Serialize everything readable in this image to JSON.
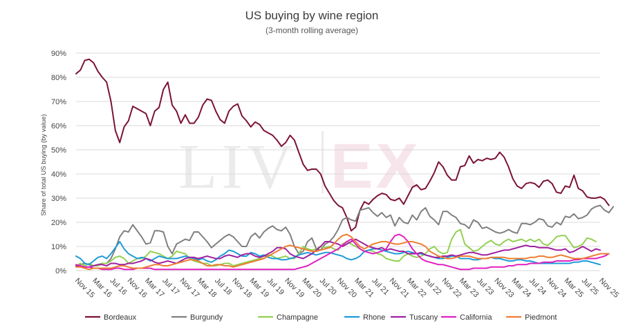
{
  "chart_data": {
    "type": "line",
    "title": "US buying by wine region",
    "subtitle": "(3-month rolling average)",
    "ylabel": "Share of total US buying (by value)",
    "xlabel": "",
    "ylim": [
      0,
      90
    ],
    "yticks": [
      0,
      10,
      20,
      30,
      40,
      50,
      60,
      70,
      80,
      90
    ],
    "ytick_labels": [
      "0%",
      "10%",
      "20%",
      "30%",
      "40%",
      "50%",
      "60%",
      "70%",
      "80%",
      "90%"
    ],
    "x_start": "Nov 15",
    "x_end": "Nov 25",
    "n_points": 121,
    "xtick_labels": [
      "Nov 15",
      "Mar 16",
      "Jul 16",
      "Nov 16",
      "Mar 17",
      "Jul 17",
      "Nov 17",
      "Mar 18",
      "Jul 18",
      "Nov 18",
      "Mar 19",
      "Jul 19",
      "Nov 19",
      "Mar 20",
      "Jul 20",
      "Nov 20",
      "Mar 21",
      "Jul 21",
      "Nov 21",
      "Mar 22",
      "Jul 22",
      "Nov 22",
      "Mar 23",
      "Jul 23",
      "Nov 23",
      "Mar 24",
      "Jul 24",
      "Nov 24",
      "Mar 25",
      "Jul 25",
      "Nov 25"
    ],
    "grid": true,
    "legend_position": "bottom",
    "watermark": "LIV-EX",
    "series": [
      {
        "name": "Bordeaux",
        "color": "#7b1235",
        "values": [
          81.5,
          83,
          87,
          87.5,
          86,
          82.5,
          80,
          78,
          70,
          58,
          53,
          59.5,
          62,
          68,
          67,
          66,
          65,
          60,
          66,
          67.5,
          75,
          78,
          68.5,
          66,
          61,
          64.5,
          61,
          61,
          63.5,
          68.5,
          71,
          70.5,
          66,
          62.5,
          61,
          66,
          68,
          69,
          64,
          62,
          59.5,
          61.5,
          60.5,
          58,
          57,
          56,
          54,
          51.5,
          53,
          56,
          54,
          49,
          44,
          41.5,
          42,
          42,
          40,
          35,
          32,
          29,
          27,
          26,
          22,
          16.5,
          18,
          25,
          28.5,
          27.5,
          29.5,
          31,
          32,
          31.5,
          29.5,
          29,
          30,
          27.5,
          31,
          34.5,
          35.5,
          33.5,
          34,
          37,
          40.5,
          45,
          43,
          39.5,
          37.5,
          37.5,
          43,
          43.5,
          47.5,
          44.5,
          46,
          45.5,
          46.5,
          46,
          46.5,
          49,
          47,
          43,
          38,
          35,
          34,
          36,
          36.5,
          36,
          34.5,
          37,
          37.5,
          36,
          32.5,
          32,
          35,
          34.5,
          39.5,
          34,
          33,
          30.5,
          30,
          30,
          30.5,
          29.5,
          27
        ]
      },
      {
        "name": "Burgundy",
        "color": "#7f7f7f",
        "values": [
          2,
          2.5,
          3,
          2.5,
          2,
          2.5,
          3,
          3,
          5,
          9,
          14,
          16.5,
          16,
          19,
          16.5,
          14,
          11,
          11.5,
          16.5,
          16.5,
          16,
          10,
          7,
          11,
          12,
          13,
          12.5,
          16,
          16,
          14,
          12,
          9.5,
          11,
          12.5,
          14,
          15,
          14,
          12,
          10,
          10,
          14,
          15.5,
          13.5,
          16,
          17.5,
          18.5,
          17,
          16.5,
          18,
          15,
          10,
          7,
          8,
          12,
          13.5,
          9,
          8.5,
          11,
          12,
          14,
          17,
          21,
          22,
          21,
          20.5,
          25,
          25.5,
          26,
          24,
          22.5,
          24,
          22,
          23,
          18.5,
          22,
          20,
          19.5,
          23,
          21,
          24.5,
          26,
          22.5,
          21,
          19,
          24.5,
          24.5,
          23,
          22,
          19.5,
          19,
          17.5,
          21,
          20,
          17.5,
          18,
          17,
          16,
          15.5,
          16,
          17,
          16,
          15.5,
          19.5,
          19.5,
          19,
          20,
          21.5,
          21,
          18.5,
          18,
          20,
          19,
          22.5,
          22,
          23.5,
          21.5,
          22,
          23,
          25.5,
          26.5,
          27,
          25,
          24,
          26.5
        ]
      },
      {
        "name": "Champagne",
        "color": "#92d050",
        "values": [
          2,
          3,
          2,
          3,
          2,
          2,
          3,
          3,
          4,
          5.5,
          6,
          5,
          3,
          4,
          5,
          5,
          6,
          8,
          7.5,
          7,
          6,
          5,
          6,
          8,
          7.5,
          7,
          5,
          4,
          3.5,
          3,
          3,
          2,
          2,
          2.5,
          3,
          3,
          2,
          2.5,
          3,
          3.5,
          4,
          4.5,
          5,
          5,
          6.5,
          6,
          5,
          5.5,
          6,
          5,
          5,
          7,
          10,
          9,
          8.5,
          9,
          10,
          9.5,
          10,
          9,
          8.5,
          11,
          12,
          11,
          10,
          9,
          8,
          8.5,
          8,
          7,
          6.5,
          5,
          4.5,
          4,
          4,
          6,
          7,
          6,
          5.5,
          6,
          7,
          9,
          10,
          8,
          7,
          7.5,
          13,
          16,
          17,
          11,
          9.5,
          8,
          8.5,
          10,
          11.5,
          12.5,
          11,
          10.5,
          12,
          13,
          12,
          12.5,
          13,
          12,
          13,
          12,
          13,
          11,
          10.5,
          12,
          14,
          14.5,
          14.5,
          12,
          9.5,
          10,
          11,
          13.5,
          13,
          12
        ]
      },
      {
        "name": "Rhone",
        "color": "#1f9bd7",
        "values": [
          6,
          5,
          3,
          2.5,
          4,
          5.5,
          6,
          5,
          7,
          9.5,
          12,
          9,
          7,
          6,
          5,
          5.5,
          5,
          4,
          5,
          6,
          5.5,
          5,
          5,
          5,
          5.5,
          6,
          5.5,
          5,
          4.5,
          5,
          4,
          3.5,
          4.5,
          6,
          7,
          8.5,
          8,
          7,
          6,
          6,
          7.5,
          7,
          6,
          6.5,
          5.5,
          5,
          5,
          4.5,
          4.5,
          5,
          5.5,
          6.5,
          7,
          7.5,
          7,
          6.5,
          7,
          7.5,
          7.5,
          7,
          6.5,
          6,
          5,
          4.5,
          5,
          6,
          8,
          8.5,
          9,
          9,
          8.5,
          8,
          7.5,
          7,
          7,
          7.5,
          8,
          7.5,
          7,
          7,
          6.5,
          6,
          5.5,
          5,
          5,
          5.5,
          6,
          6,
          5,
          5,
          5,
          4.5,
          4.5,
          5,
          5,
          5.5,
          5,
          5,
          4.5,
          4,
          4,
          4.5,
          4.5,
          4,
          4,
          3.5,
          3,
          3,
          3,
          3,
          3,
          3,
          3,
          3,
          3.5,
          3.5,
          4,
          4,
          3.5,
          3,
          2.5
        ]
      },
      {
        "name": "Tuscany",
        "color": "#a020a0",
        "values": [
          2,
          2,
          1.5,
          1.5,
          2,
          2.5,
          2.5,
          2,
          3,
          3,
          2.5,
          2.5,
          3,
          3,
          3.5,
          4,
          5,
          4.5,
          3.5,
          3,
          3.5,
          4,
          3.5,
          3,
          4,
          5,
          5.5,
          5.5,
          5,
          5.5,
          6,
          5.5,
          5,
          5,
          6,
          6.5,
          6,
          5.5,
          6.5,
          7,
          7,
          6,
          5.5,
          6,
          7,
          8,
          9.5,
          9.5,
          9,
          7,
          6,
          5.5,
          5,
          6,
          7,
          8.5,
          10,
          12,
          12,
          11.5,
          11,
          10,
          11,
          12,
          13,
          12,
          11,
          10,
          9.5,
          9,
          9.5,
          8.5,
          9,
          8.5,
          8,
          8,
          7,
          7,
          7,
          7.5,
          6.5,
          6,
          5.5,
          5.5,
          6,
          6,
          6.5,
          6,
          6.5,
          7,
          7.5,
          7.5,
          7,
          6.5,
          6.5,
          7,
          7.5,
          8,
          8.5,
          8.5,
          9,
          9.5,
          10,
          10.5,
          10,
          10,
          9.5,
          9.5,
          9.5,
          9,
          8.5,
          8.5,
          9,
          7.5,
          8,
          9,
          10,
          9,
          8,
          9,
          8.5
        ]
      },
      {
        "name": "California",
        "color": "#e020c0",
        "values": [
          2.5,
          2,
          1.5,
          1.5,
          1,
          1,
          0.5,
          0.5,
          0.5,
          1,
          1,
          0.5,
          0.5,
          0.5,
          1,
          1,
          1,
          1,
          0.5,
          0.5,
          0.5,
          0.5,
          0.5,
          0.5,
          0.5,
          0.5,
          0.5,
          0.5,
          0.5,
          0.5,
          0.5,
          0.5,
          0.5,
          0.5,
          0.5,
          0.5,
          0.5,
          0.5,
          0.5,
          0.5,
          0.5,
          0.5,
          0.5,
          0.5,
          0.5,
          0.5,
          0.5,
          0.5,
          0.5,
          0.5,
          0.5,
          1,
          1.5,
          2,
          3,
          4,
          5,
          6,
          7,
          8,
          9,
          10.5,
          12,
          13,
          11,
          9,
          8,
          7.5,
          7,
          7.5,
          8,
          9,
          12,
          14.5,
          15,
          14,
          12,
          9,
          7,
          5,
          4,
          3.5,
          3,
          2.5,
          2.5,
          2,
          1.5,
          1,
          0.5,
          0.5,
          0.5,
          1,
          1,
          1,
          1,
          1.5,
          1.5,
          1.5,
          1.5,
          2,
          2,
          2.5,
          2.5,
          2.5,
          3,
          3,
          3,
          3.5,
          3.5,
          3.5,
          4,
          4,
          4,
          4,
          4.5,
          4.5,
          5,
          5,
          5,
          5,
          5.5,
          6,
          7
        ]
      },
      {
        "name": "Piedmont",
        "color": "#ed7d31",
        "values": [
          1.5,
          1.5,
          1,
          0.5,
          1,
          1,
          1,
          1,
          1,
          1.5,
          2,
          2,
          1.5,
          1,
          1,
          1,
          1.5,
          2,
          2.5,
          2.5,
          2,
          2,
          2.5,
          3,
          3.5,
          4,
          4.5,
          4.5,
          4,
          3,
          2,
          2,
          2.5,
          2.5,
          2,
          2,
          1.5,
          2,
          2.5,
          3,
          3.5,
          4,
          4.5,
          5,
          6,
          7,
          8,
          9,
          10,
          10.5,
          10,
          9.5,
          9,
          8.5,
          8,
          8,
          8.5,
          9,
          9.5,
          11,
          13,
          14.5,
          15,
          14,
          12,
          10,
          9,
          10,
          11,
          11.5,
          12,
          12,
          11.5,
          11,
          11,
          11.5,
          12,
          12,
          11.5,
          11,
          10,
          8,
          7,
          6,
          5.5,
          5,
          5,
          5.5,
          6,
          6,
          6,
          5.5,
          5,
          5,
          5,
          5.5,
          5.5,
          5.5,
          5.5,
          5,
          5,
          5,
          5,
          5,
          5.5,
          5.5,
          6,
          6,
          5.5,
          5.5,
          6,
          6.5,
          6,
          5.5,
          5,
          5,
          5,
          5.5,
          6,
          6.5,
          7,
          7,
          7
        ]
      }
    ]
  }
}
